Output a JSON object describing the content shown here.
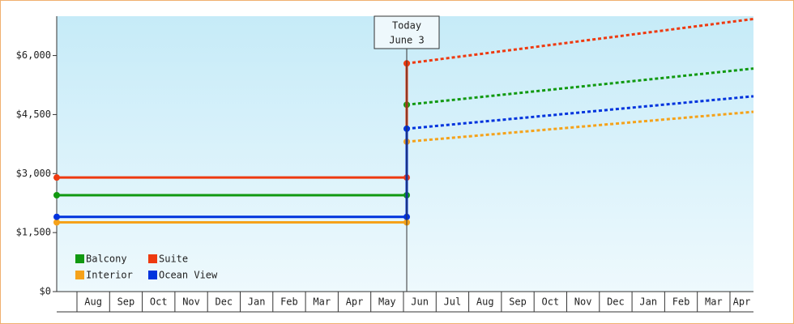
{
  "chart_data": {
    "type": "line",
    "ylim": [
      0,
      7000
    ],
    "yticks": [
      {
        "value": 0,
        "label": "$0"
      },
      {
        "value": 1500,
        "label": "$1,500"
      },
      {
        "value": 3000,
        "label": "$3,000"
      },
      {
        "value": 4500,
        "label": "$4,500"
      },
      {
        "value": 6000,
        "label": "$6,000"
      }
    ],
    "xlim": [
      -0.62,
      20.72
    ],
    "categories": [
      null,
      "Aug",
      "Sep",
      "Oct",
      "Nov",
      "Dec",
      "Jan",
      "Feb",
      "Mar",
      "Apr",
      "May",
      "Jun",
      "Jul",
      "Aug",
      "Sep",
      "Oct",
      "Nov",
      "Dec",
      "Jan",
      "Feb",
      "Mar",
      "Apr"
    ],
    "today": {
      "x": 10.1,
      "label": "Today",
      "date": "June 3"
    },
    "legend": "lower left",
    "series": [
      {
        "name": "Balcony",
        "color": "#119911",
        "history": {
          "x": [
            -0.62,
            10.1
          ],
          "values": [
            2450,
            2450
          ]
        },
        "forecast": {
          "x": [
            10.1,
            20.72
          ],
          "values": [
            4750,
            5670
          ]
        }
      },
      {
        "name": "Suite",
        "color": "#ee3a10",
        "history": {
          "x": [
            -0.62,
            10.1
          ],
          "values": [
            2900,
            2900
          ]
        },
        "forecast": {
          "x": [
            10.1,
            20.72
          ],
          "values": [
            5800,
            6930
          ]
        }
      },
      {
        "name": "Interior",
        "color": "#f5a21a",
        "history": {
          "x": [
            -0.62,
            10.1
          ],
          "values": [
            1760,
            1760
          ]
        },
        "forecast": {
          "x": [
            10.1,
            20.72
          ],
          "values": [
            3810,
            4570
          ]
        }
      },
      {
        "name": "Ocean View",
        "color": "#0033dd",
        "history": {
          "x": [
            -0.62,
            10.1
          ],
          "values": [
            1900,
            1900
          ]
        },
        "forecast": {
          "x": [
            10.1,
            20.72
          ],
          "values": [
            4140,
            4965
          ]
        }
      }
    ]
  }
}
